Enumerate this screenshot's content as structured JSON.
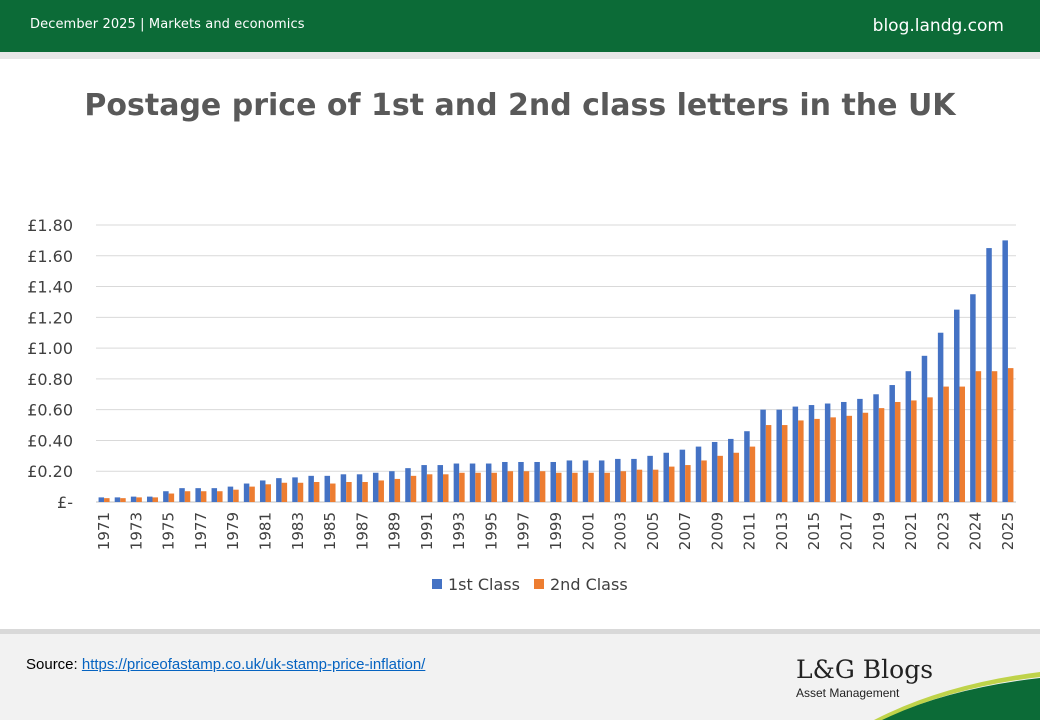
{
  "header": {
    "left_text": "December 2025 |  Markets and economics",
    "right_text": "blog.landg.com"
  },
  "footer": {
    "source_label": "Source: ",
    "source_link": "https://priceofastamp.co.uk/uk-stamp-price-inflation/",
    "logo_name": "L&G Blogs",
    "logo_sub": "Asset Management"
  },
  "colors": {
    "header_bg": "#0c6b37",
    "first_class": "#4472c4",
    "second_class": "#ed7d31"
  },
  "chart_data": {
    "type": "bar",
    "title": "Postage price of 1st and 2nd class letters in the UK",
    "xlabel": "",
    "ylabel": "",
    "ylim": [
      0,
      1.8
    ],
    "y_ticks": [
      "£-",
      "£0.20",
      "£0.40",
      "£0.60",
      "£0.80",
      "£1.00",
      "£1.20",
      "£1.40",
      "£1.60",
      "£1.80"
    ],
    "y_tick_values": [
      0,
      0.2,
      0.4,
      0.6,
      0.8,
      1.0,
      1.2,
      1.4,
      1.6,
      1.8
    ],
    "grid": true,
    "legend_position": "bottom",
    "categories": [
      "1971",
      "1972",
      "1973",
      "1974",
      "1975",
      "1976",
      "1977",
      "1978",
      "1979",
      "1980",
      "1981",
      "1982",
      "1983",
      "1984",
      "1985",
      "1986",
      "1987",
      "1988",
      "1989",
      "1990",
      "1991",
      "1992",
      "1993",
      "1994",
      "1995",
      "1996",
      "1997",
      "1998",
      "1999",
      "2000",
      "2001",
      "2002",
      "2003",
      "2004",
      "2005",
      "2006",
      "2007",
      "2008",
      "2009",
      "2010",
      "2011",
      "2012",
      "2013",
      "2014",
      "2015",
      "2016",
      "2017",
      "2018",
      "2019",
      "2020",
      "2021",
      "2022",
      "2023",
      "2023",
      "2024",
      "2024",
      "2025"
    ],
    "x_tick_labels": [
      "1971",
      "",
      "1973",
      "",
      "1975",
      "",
      "1977",
      "",
      "1979",
      "",
      "1981",
      "",
      "1983",
      "",
      "1985",
      "",
      "1987",
      "",
      "1989",
      "",
      "1991",
      "",
      "1993",
      "",
      "1995",
      "",
      "1997",
      "",
      "1999",
      "",
      "2001",
      "",
      "2003",
      "",
      "2005",
      "",
      "2007",
      "",
      "2009",
      "",
      "2011",
      "",
      "2013",
      "",
      "2015",
      "",
      "2017",
      "",
      "2019",
      "",
      "2021",
      "",
      "2023",
      "",
      "2024",
      "",
      "2025"
    ],
    "series": [
      {
        "name": "1st Class",
        "color": "#4472c4",
        "values": [
          0.03,
          0.03,
          0.035,
          0.035,
          0.07,
          0.09,
          0.09,
          0.09,
          0.1,
          0.12,
          0.14,
          0.155,
          0.16,
          0.17,
          0.17,
          0.18,
          0.18,
          0.19,
          0.2,
          0.22,
          0.24,
          0.24,
          0.25,
          0.25,
          0.25,
          0.26,
          0.26,
          0.26,
          0.26,
          0.27,
          0.27,
          0.27,
          0.28,
          0.28,
          0.3,
          0.32,
          0.34,
          0.36,
          0.39,
          0.41,
          0.46,
          0.6,
          0.6,
          0.62,
          0.63,
          0.64,
          0.65,
          0.67,
          0.7,
          0.76,
          0.85,
          0.95,
          1.1,
          1.25,
          1.35,
          1.65,
          1.7
        ]
      },
      {
        "name": "2nd Class",
        "color": "#ed7d31",
        "values": [
          0.025,
          0.025,
          0.03,
          0.03,
          0.055,
          0.07,
          0.07,
          0.07,
          0.08,
          0.1,
          0.115,
          0.125,
          0.125,
          0.13,
          0.12,
          0.13,
          0.13,
          0.14,
          0.15,
          0.17,
          0.18,
          0.18,
          0.19,
          0.19,
          0.19,
          0.2,
          0.2,
          0.2,
          0.19,
          0.19,
          0.19,
          0.19,
          0.2,
          0.21,
          0.21,
          0.23,
          0.24,
          0.27,
          0.3,
          0.32,
          0.36,
          0.5,
          0.5,
          0.53,
          0.54,
          0.55,
          0.56,
          0.58,
          0.61,
          0.65,
          0.66,
          0.68,
          0.75,
          0.75,
          0.85,
          0.85,
          0.87
        ]
      }
    ]
  }
}
